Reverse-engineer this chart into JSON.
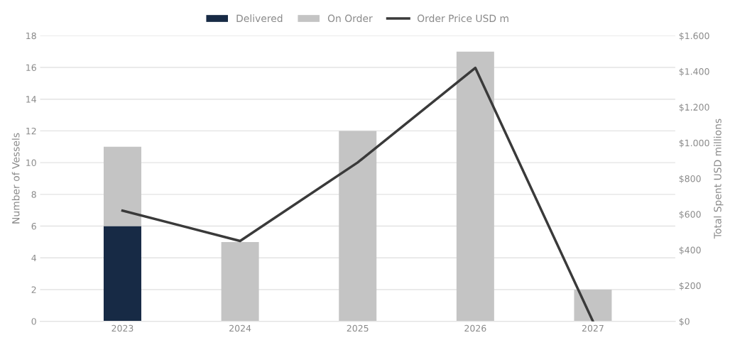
{
  "chart_data": {
    "type": "bar",
    "stacked": true,
    "categories": [
      "2023",
      "2024",
      "2025",
      "2026",
      "2027"
    ],
    "ylabel": "Number of Vessels",
    "y2label": "Total Spent USD millions",
    "ylim": [
      0,
      18
    ],
    "yticks": [
      0,
      2,
      4,
      6,
      8,
      10,
      12,
      14,
      16,
      18
    ],
    "y2lim": [
      0,
      1600
    ],
    "y2ticks": [
      {
        "value": 0,
        "label": "$0"
      },
      {
        "value": 200,
        "label": "$200"
      },
      {
        "value": 400,
        "label": "$400"
      },
      {
        "value": 600,
        "label": "$600"
      },
      {
        "value": 800,
        "label": "$800"
      },
      {
        "value": 1000,
        "label": "$1.000"
      },
      {
        "value": 1200,
        "label": "$1.200"
      },
      {
        "value": 1400,
        "label": "$1.400"
      },
      {
        "value": 1600,
        "label": "$1.600"
      }
    ],
    "grid": "y",
    "legend": "top",
    "series": [
      {
        "name": "Delivered",
        "color": "#172a45",
        "values": [
          6,
          0,
          0,
          0,
          0
        ]
      },
      {
        "name": "On Order",
        "color": "#c4c4c4",
        "values": [
          5,
          5,
          12,
          17,
          2
        ]
      },
      {
        "name": "Order Price USD m",
        "type": "line",
        "axis": "y2",
        "color": "#3a3a3a",
        "values": [
          620,
          450,
          890,
          1420,
          0
        ]
      }
    ]
  }
}
